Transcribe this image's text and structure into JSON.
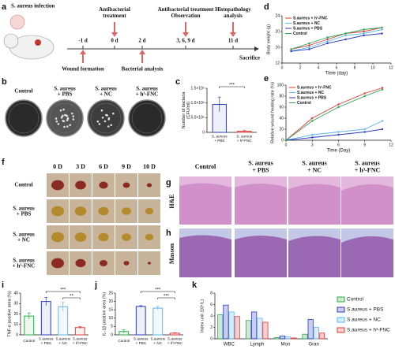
{
  "panel_labels": [
    "a",
    "b",
    "c",
    "d",
    "e",
    "f",
    "g",
    "h",
    "i",
    "j",
    "k"
  ],
  "timeline": {
    "title": "S. aureus infection",
    "days": [
      "-1 d",
      "0 d",
      "2 d",
      "3, 6, 9 d",
      "11 d"
    ],
    "above": [
      "Antibacterial\ntreatment",
      "Antibacterial treatment\nObservation",
      "Histopathology\nanalysis"
    ],
    "below": [
      "Wound formation",
      "Bacterial analysis",
      "Sacrifice"
    ]
  },
  "groups": [
    "Control",
    "S. aureus\n+ PBS",
    "S. aureus\n+ NC",
    "S. aureus\n+ h³-FNC"
  ],
  "wound_days": [
    "0 D",
    "3 D",
    "6 D",
    "9 D",
    "10 D"
  ],
  "stains": [
    "H&E",
    "Masson"
  ],
  "chart_data": [
    {
      "type": "line",
      "ylabel": "Body weight (g)",
      "xlabel": "Time (day)",
      "x": [
        1,
        3,
        5,
        7,
        9,
        11
      ],
      "xlim": [
        0,
        12
      ],
      "xticks": [
        0,
        2,
        4,
        6,
        8,
        10,
        12
      ],
      "ylim": [
        12,
        24
      ],
      "yticks": [
        12,
        16,
        20,
        24
      ],
      "legend": "upper left",
      "series": [
        {
          "name": "S.aureus + h³-FNC",
          "color": "#e03a3a",
          "values": [
            15.5,
            16.5,
            18,
            19.5,
            20,
            21
          ]
        },
        {
          "name": "S.aureus + NC",
          "color": "#5bb8ee",
          "values": [
            15,
            16,
            17.5,
            19,
            19.5,
            20.5
          ]
        },
        {
          "name": "S.aureus + PBS",
          "color": "#2b3bbd",
          "values": [
            15,
            15.5,
            17,
            18,
            19,
            19.5
          ]
        },
        {
          "name": "Control",
          "color": "#2ea84f",
          "values": [
            15.5,
            17,
            18.5,
            19.5,
            20.5,
            21
          ]
        }
      ]
    },
    {
      "type": "bar",
      "ylabel": "Number of bacteria\n(CFU/ml)",
      "categories": [
        "S. aureus\n+ PBS",
        "S. aureus\n+ h³-FNC"
      ],
      "values": [
        950000,
        40000
      ],
      "errors": [
        250000,
        20000
      ],
      "colors": [
        "#2b3bbd",
        "#e03a3a"
      ],
      "ylim": [
        0,
        1500000
      ],
      "yticks": [
        0,
        {
          "value": 500000,
          "label": "5.0×10⁵"
        },
        {
          "value": 1000000,
          "label": "1.0×10⁶"
        },
        {
          "value": 1500000,
          "label": "1.5×10⁶"
        }
      ],
      "annotations": [
        "***"
      ]
    },
    {
      "type": "line",
      "ylabel": "Relative wound healing rate (%)",
      "xlabel": "Time (Day)",
      "x": [
        0,
        3,
        6,
        9,
        11
      ],
      "xlim": [
        0,
        12
      ],
      "xticks": [
        0,
        3,
        6,
        9,
        12
      ],
      "ylim": [
        0,
        100
      ],
      "yticks": [
        0,
        20,
        40,
        60,
        80,
        100
      ],
      "legend": "upper left",
      "series": [
        {
          "name": "S.aureus + h³-FNC",
          "color": "#e03a3a",
          "values": [
            0,
            40,
            65,
            85,
            95
          ]
        },
        {
          "name": "S.aureus + NC",
          "color": "#5bb8ee",
          "values": [
            0,
            10,
            15,
            20,
            35
          ]
        },
        {
          "name": "S.aureus + PBS",
          "color": "#2b3bbd",
          "values": [
            0,
            5,
            10,
            15,
            20
          ]
        },
        {
          "name": "Control",
          "color": "#2ea84f",
          "values": [
            0,
            35,
            60,
            80,
            92
          ]
        }
      ]
    },
    {
      "type": "bar",
      "ylabel": "TNF-α positive area (%)",
      "categories": [
        "Control",
        "S.aureus\n+ PBS",
        "S.aureus\n+ NC",
        "S.aureus\n+ h³-FNC"
      ],
      "values": [
        18,
        32,
        27,
        7
      ],
      "errors": [
        3,
        4,
        4,
        1
      ],
      "colors": [
        "#2ea84f",
        "#2b3bbd",
        "#5bb8ee",
        "#e03a3a"
      ],
      "ylim": [
        0,
        40
      ],
      "yticks": [
        0,
        10,
        20,
        30,
        40
      ],
      "annotations": [
        "***",
        "**"
      ]
    },
    {
      "type": "bar",
      "ylabel": "IL-1β positive area (%)",
      "categories": [
        "Control",
        "S.aureus\n+ PBS",
        "S.aureus\n+ NC",
        "S.aureus\n+ h³-FNC"
      ],
      "values": [
        2,
        17,
        16,
        1
      ],
      "errors": [
        1,
        0.5,
        1,
        0.3
      ],
      "colors": [
        "#2ea84f",
        "#2b3bbd",
        "#5bb8ee",
        "#e03a3a"
      ],
      "ylim": [
        0,
        25
      ],
      "yticks": [
        0,
        5,
        10,
        15,
        20,
        25
      ],
      "annotations": [
        "***",
        "***"
      ]
    },
    {
      "type": "bar",
      "ylabel": "Index unit (10⁹/L)",
      "categories": [
        "WBC",
        "Lymph",
        "Mon",
        "Gran"
      ],
      "ylim": [
        0,
        8
      ],
      "yticks": [
        0,
        2,
        4,
        6,
        8
      ],
      "legend": "right",
      "series": [
        {
          "name": "Control",
          "color": "#2ea84f",
          "values": [
            4.2,
            3.2,
            0.2,
            0.8
          ]
        },
        {
          "name": "S.aureus + PBS",
          "color": "#2b3bbd",
          "values": [
            5.9,
            4.7,
            0.5,
            3.4
          ]
        },
        {
          "name": "S.aureus + NC",
          "color": "#5bb8ee",
          "values": [
            4.7,
            3.6,
            0.35,
            2
          ]
        },
        {
          "name": "S.aureus + h³-FNC",
          "color": "#e03a3a",
          "values": [
            3.9,
            2.9,
            0.15,
            1
          ]
        }
      ]
    }
  ]
}
